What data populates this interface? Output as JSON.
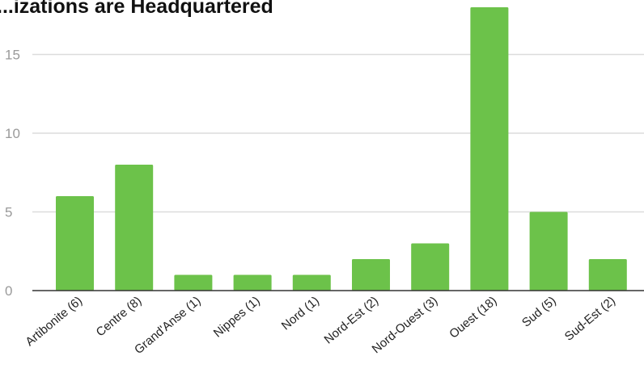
{
  "title": "...izations are Headquartered",
  "chart_data": {
    "type": "bar",
    "title": "...izations are Headquartered",
    "categories": [
      "Artibonite (6)",
      "Centre (8)",
      "Grand'Anse (1)",
      "Nippes (1)",
      "Nord (1)",
      "Nord-Est (2)",
      "Nord-Ouest (3)",
      "Ouest (18)",
      "Sud (5)",
      "Sud-Est (2)"
    ],
    "values": [
      6,
      8,
      1,
      1,
      1,
      2,
      3,
      18,
      5,
      2
    ],
    "yticks": [
      "0",
      "5",
      "10",
      "15"
    ],
    "ylim": [
      0,
      18
    ],
    "grid": true,
    "colors": {
      "bar": "#6cc24a",
      "grid": "#dcdcdc",
      "baseline": "#333333"
    }
  }
}
